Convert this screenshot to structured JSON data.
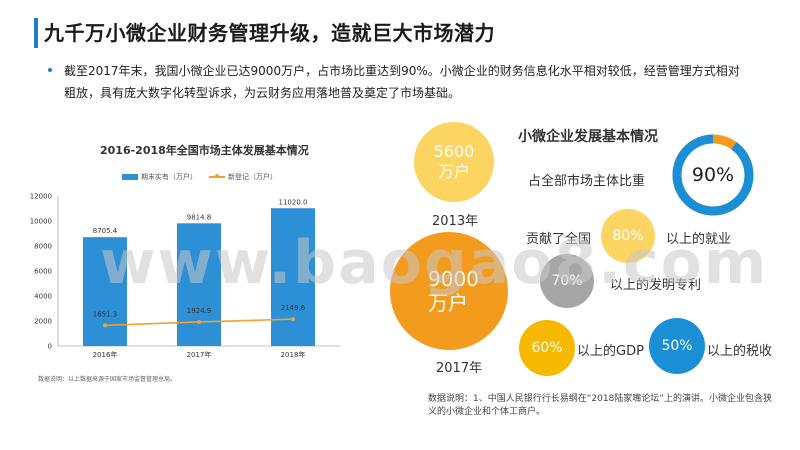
{
  "title": "九千万小微企业财务管理升级，造就巨大市场潜力",
  "intro": "截至2017年末，我国小微企业已达9000万户，占市场比重达到90%。小微企业的财务信息化水平相对较低，经营管理方式相对粗放，具有庞大数字化转型诉求，为云财务应用落地普及奠定了市场基础。",
  "chart_data": {
    "type": "bar",
    "title": "2016-2018年全国市场主体发展基本情况",
    "categories": [
      "2016年",
      "2017年",
      "2018年"
    ],
    "series": [
      {
        "name": "期末实有（万户）",
        "type": "bar",
        "values": [
          8705.4,
          9814.8,
          11020.0
        ],
        "labels": [
          "8705.4",
          "9814.8",
          "11020.0"
        ],
        "color": "#2d8fd6"
      },
      {
        "name": "新登记（万户）",
        "type": "line",
        "values": [
          1651.3,
          1924.9,
          2149.6
        ],
        "labels": [
          "1651.3",
          "1924.9",
          "2149.6"
        ],
        "color": "#f0a22e"
      }
    ],
    "ylim": [
      0,
      12000
    ],
    "yticks": [
      "0",
      "2000",
      "4000",
      "6000",
      "8000",
      "10000",
      "12000"
    ],
    "grid": false,
    "legend": "top",
    "xlabel": "",
    "ylabel": ""
  },
  "chart_note": "数据说明：以上数据来源于国家市场监督管理总局。",
  "circles": {
    "title": "小微企业发展基本情况",
    "y2013_value": "5600",
    "y2013_unit": "万户",
    "y2013_year": "2013年",
    "y2017_value": "9000",
    "y2017_unit": "万户",
    "y2017_year": "2017年",
    "ring_label": "占全部市场主体比重",
    "ring_value": "90%",
    "ring_fraction": 0.9,
    "contrib_prefix": "贡献了全国",
    "employment_value": "80%",
    "employment_label": "以上的就业",
    "patent_value": "70%",
    "patent_label": "以上的发明专利",
    "gdp_value": "60%",
    "gdp_label": "以上的GDP",
    "tax_value": "50%",
    "tax_label": "以上的税收",
    "ring_color": "#1b8fd6",
    "ring_rest_color": "#f39b1d"
  },
  "data_note": "数据说明：1、中国人民银行行长易纲在“2018陆家嘴论坛”上的演讲。小微企业包含狭义的小微企业和个体工商户。",
  "watermark": "www.baogao8.com"
}
